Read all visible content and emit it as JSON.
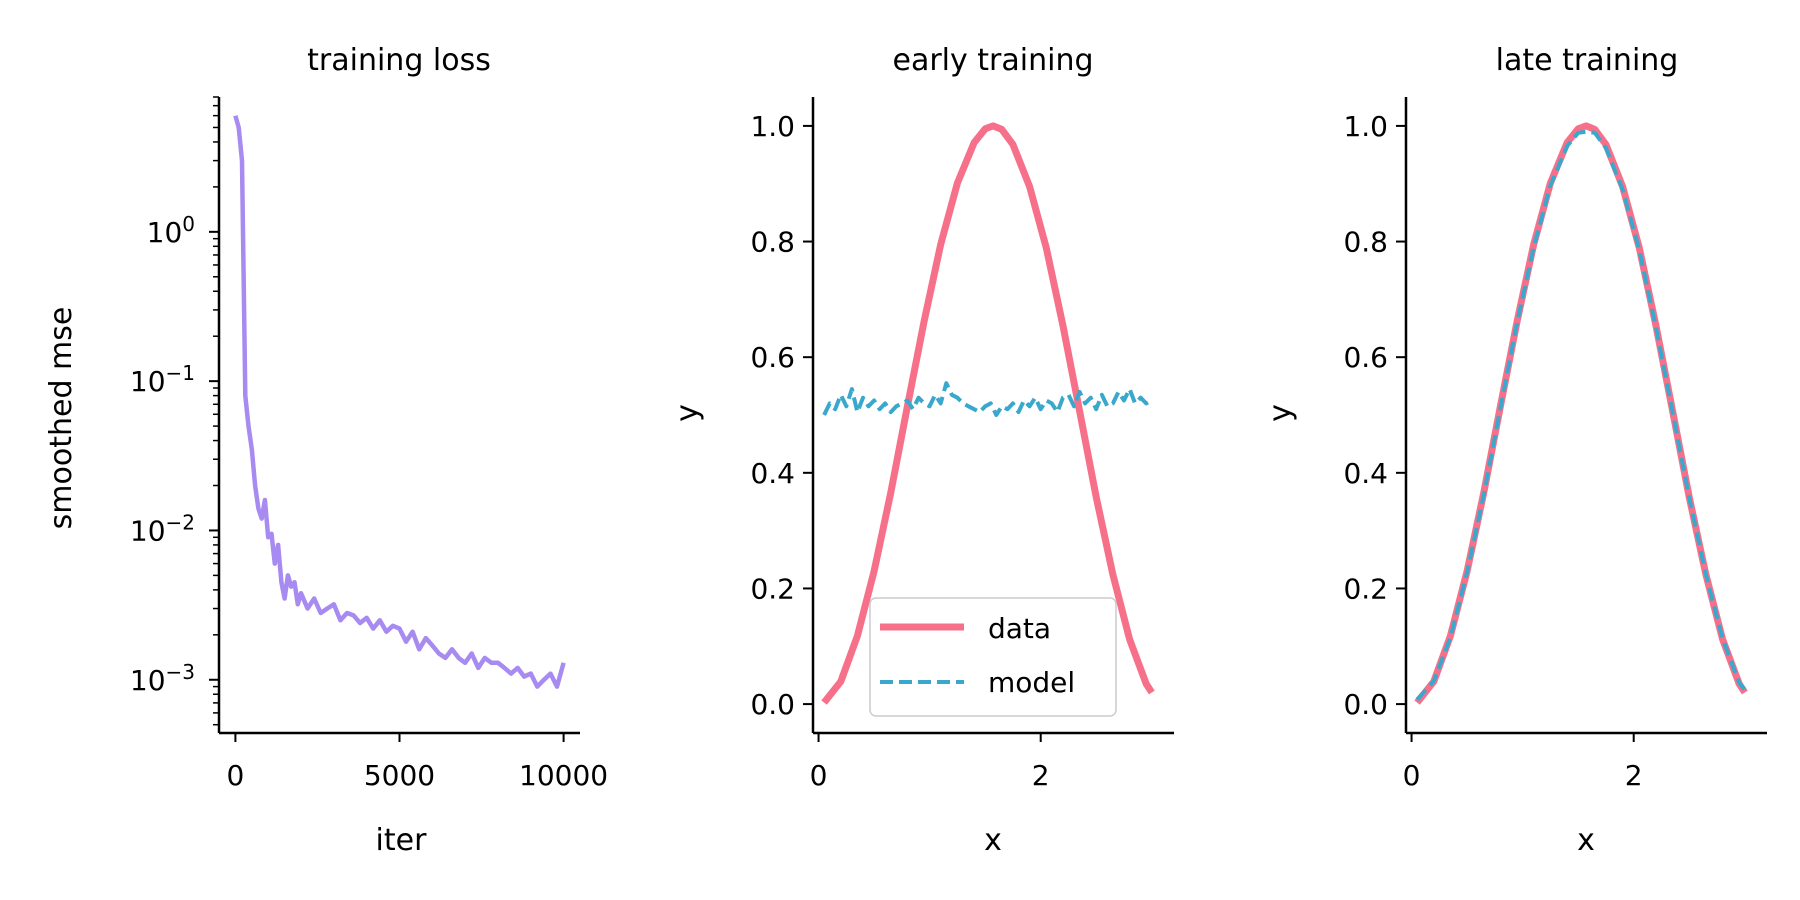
{
  "colors": {
    "loss": "#a78bf0",
    "data": "#f7708a",
    "model": "#3aa8cc"
  },
  "chart_data": [
    {
      "type": "line",
      "title": "training loss",
      "xlabel": "iter",
      "ylabel": "smoothed mse",
      "xscale": "linear",
      "yscale": "log",
      "xlim": [
        -500,
        10500
      ],
      "ylim": [
        0.00044,
        8.0
      ],
      "xticks": [
        0,
        5000,
        10000
      ],
      "xticklabels": [
        "0",
        "5000",
        "10000"
      ],
      "yticks": [
        0.001,
        0.01,
        0.1,
        1
      ],
      "yticklabels": [
        {
          "base": "10",
          "exp": "−3"
        },
        {
          "base": "10",
          "exp": "−2"
        },
        {
          "base": "10",
          "exp": "−1"
        },
        {
          "base": "10",
          "exp": "0"
        }
      ],
      "series": [
        {
          "color": "#a78bf0",
          "x": [
            0,
            100,
            200,
            300,
            400,
            500,
            600,
            700,
            800,
            900,
            1000,
            1100,
            1200,
            1300,
            1400,
            1500,
            1600,
            1700,
            1800,
            1900,
            2000,
            2200,
            2400,
            2600,
            2800,
            3000,
            3200,
            3400,
            3600,
            3800,
            4000,
            4200,
            4400,
            4600,
            4800,
            5000,
            5200,
            5400,
            5600,
            5800,
            6000,
            6200,
            6400,
            6600,
            6800,
            7000,
            7200,
            7400,
            7600,
            7800,
            8000,
            8200,
            8400,
            8600,
            8800,
            9000,
            9200,
            9400,
            9600,
            9800,
            10000
          ],
          "y": [
            6.0,
            5.0,
            3.0,
            0.08,
            0.05,
            0.035,
            0.02,
            0.014,
            0.012,
            0.016,
            0.009,
            0.0095,
            0.006,
            0.008,
            0.0045,
            0.0035,
            0.005,
            0.0042,
            0.0045,
            0.0032,
            0.0038,
            0.003,
            0.0035,
            0.0028,
            0.003,
            0.0032,
            0.0025,
            0.0028,
            0.0027,
            0.0024,
            0.0026,
            0.0022,
            0.0025,
            0.0021,
            0.0023,
            0.0022,
            0.0018,
            0.0021,
            0.0016,
            0.0019,
            0.0017,
            0.0015,
            0.0014,
            0.0016,
            0.0014,
            0.0013,
            0.0015,
            0.0012,
            0.0014,
            0.0013,
            0.0013,
            0.0012,
            0.0011,
            0.0012,
            0.00105,
            0.0011,
            0.0009,
            0.001,
            0.0011,
            0.0009,
            0.0013
          ]
        }
      ]
    },
    {
      "type": "line",
      "title": "early training",
      "xlabel": "x",
      "ylabel": "y",
      "xlim": [
        -0.05,
        3.2
      ],
      "ylim": [
        -0.05,
        1.05
      ],
      "xticks": [
        0,
        2
      ],
      "xticklabels": [
        "0",
        "2"
      ],
      "yticks": [
        0.0,
        0.2,
        0.4,
        0.6,
        0.8,
        1.0
      ],
      "yticklabels": [
        "0.0",
        "0.2",
        "0.4",
        "0.6",
        "0.8",
        "1.0"
      ],
      "legend": {
        "location": "lower center"
      },
      "series": [
        {
          "name": "data",
          "style": "solid",
          "color": "#f7708a",
          "x": [
            0.05,
            0.2,
            0.35,
            0.5,
            0.65,
            0.8,
            0.95,
            1.1,
            1.25,
            1.4,
            1.5,
            1.571,
            1.65,
            1.75,
            1.9,
            2.05,
            2.2,
            2.35,
            2.5,
            2.65,
            2.8,
            2.95,
            3.0
          ],
          "y": [
            0.0025,
            0.039,
            0.118,
            0.23,
            0.366,
            0.515,
            0.662,
            0.795,
            0.901,
            0.971,
            0.995,
            1.0,
            0.994,
            0.968,
            0.895,
            0.789,
            0.655,
            0.507,
            0.358,
            0.224,
            0.112,
            0.035,
            0.02
          ]
        },
        {
          "name": "model",
          "style": "dashed",
          "color": "#3aa8cc",
          "x": [
            0.05,
            0.1,
            0.15,
            0.2,
            0.25,
            0.3,
            0.35,
            0.4,
            0.45,
            0.5,
            0.55,
            0.6,
            0.65,
            0.7,
            0.75,
            0.8,
            0.85,
            0.9,
            0.95,
            1.0,
            1.05,
            1.1,
            1.15,
            1.2,
            1.25,
            1.3,
            1.35,
            1.4,
            1.45,
            1.5,
            1.55,
            1.6,
            1.65,
            1.7,
            1.75,
            1.8,
            1.85,
            1.9,
            1.95,
            2.0,
            2.05,
            2.1,
            2.15,
            2.2,
            2.25,
            2.3,
            2.35,
            2.4,
            2.45,
            2.5,
            2.55,
            2.6,
            2.65,
            2.7,
            2.75,
            2.8,
            2.85,
            2.9,
            2.95,
            3.0
          ],
          "y": [
            0.5,
            0.52,
            0.51,
            0.535,
            0.515,
            0.545,
            0.505,
            0.53,
            0.515,
            0.525,
            0.51,
            0.52,
            0.505,
            0.515,
            0.52,
            0.525,
            0.51,
            0.53,
            0.52,
            0.515,
            0.535,
            0.52,
            0.555,
            0.535,
            0.53,
            0.52,
            0.515,
            0.51,
            0.505,
            0.515,
            0.52,
            0.5,
            0.515,
            0.51,
            0.52,
            0.505,
            0.525,
            0.515,
            0.53,
            0.51,
            0.525,
            0.52,
            0.505,
            0.53,
            0.535,
            0.515,
            0.54,
            0.52,
            0.53,
            0.51,
            0.535,
            0.515,
            0.52,
            0.54,
            0.525,
            0.545,
            0.52,
            0.53,
            0.52,
            0.525
          ]
        }
      ]
    },
    {
      "type": "line",
      "title": "late training",
      "xlabel": "x",
      "ylabel": "y",
      "xlim": [
        -0.05,
        3.2
      ],
      "ylim": [
        -0.05,
        1.05
      ],
      "xticks": [
        0,
        2
      ],
      "xticklabels": [
        "0",
        "2"
      ],
      "yticks": [
        0.0,
        0.2,
        0.4,
        0.6,
        0.8,
        1.0
      ],
      "yticklabels": [
        "0.0",
        "0.2",
        "0.4",
        "0.6",
        "0.8",
        "1.0"
      ],
      "series": [
        {
          "style": "solid",
          "color": "#f7708a",
          "x": [
            0.05,
            0.2,
            0.35,
            0.5,
            0.65,
            0.8,
            0.95,
            1.1,
            1.25,
            1.4,
            1.5,
            1.571,
            1.65,
            1.75,
            1.9,
            2.05,
            2.2,
            2.35,
            2.5,
            2.65,
            2.8,
            2.95,
            3.0
          ],
          "y": [
            0.0025,
            0.039,
            0.118,
            0.23,
            0.366,
            0.515,
            0.662,
            0.795,
            0.901,
            0.971,
            0.995,
            1.0,
            0.994,
            0.968,
            0.895,
            0.789,
            0.655,
            0.507,
            0.358,
            0.224,
            0.112,
            0.035,
            0.02
          ]
        },
        {
          "style": "dashed",
          "color": "#3aa8cc",
          "x": [
            0.05,
            0.2,
            0.35,
            0.5,
            0.65,
            0.8,
            0.95,
            1.1,
            1.25,
            1.4,
            1.5,
            1.571,
            1.65,
            1.75,
            1.9,
            2.05,
            2.2,
            2.35,
            2.5,
            2.65,
            2.8,
            2.95,
            3.0
          ],
          "y": [
            0.008,
            0.04,
            0.115,
            0.228,
            0.362,
            0.512,
            0.66,
            0.79,
            0.897,
            0.965,
            0.988,
            0.99,
            0.988,
            0.962,
            0.89,
            0.785,
            0.652,
            0.505,
            0.357,
            0.224,
            0.113,
            0.037,
            0.025
          ]
        }
      ]
    }
  ]
}
